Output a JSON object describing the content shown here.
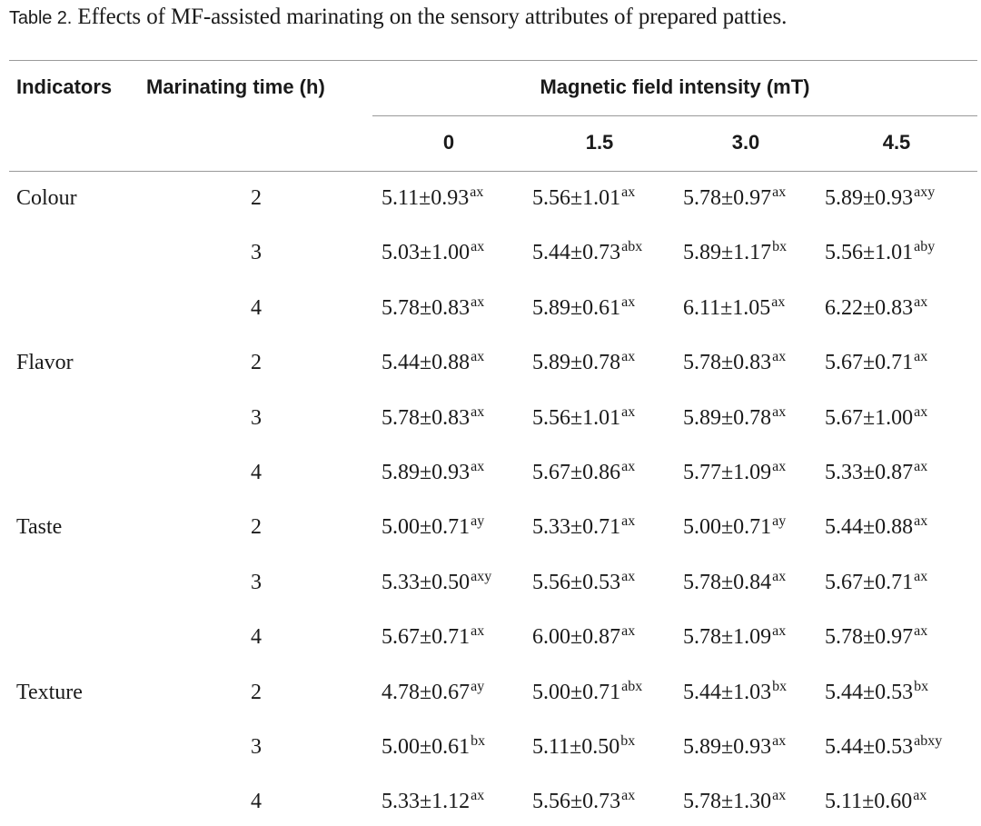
{
  "caption": {
    "label": "Table 2.",
    "text": "Effects of MF-assisted marinating on the sensory attributes of prepared patties."
  },
  "table": {
    "headers": {
      "indicators": "Indicators",
      "marinating_time": "Marinating time (h)",
      "group": "Magnetic field intensity (mT)",
      "intensities": [
        "0",
        "1.5",
        "3.0",
        "4.5"
      ]
    },
    "rows": [
      {
        "indicator": "Colour",
        "time": "2",
        "cells": [
          {
            "v": "5.11±0.93",
            "s": "ax"
          },
          {
            "v": "5.56±1.01",
            "s": "ax"
          },
          {
            "v": "5.78±0.97",
            "s": "ax"
          },
          {
            "v": "5.89±0.93",
            "s": "axy"
          }
        ]
      },
      {
        "indicator": "",
        "time": "3",
        "cells": [
          {
            "v": "5.03±1.00",
            "s": "ax"
          },
          {
            "v": "5.44±0.73",
            "s": "abx"
          },
          {
            "v": "5.89±1.17",
            "s": "bx"
          },
          {
            "v": "5.56±1.01",
            "s": "aby"
          }
        ]
      },
      {
        "indicator": "",
        "time": "4",
        "cells": [
          {
            "v": "5.78±0.83",
            "s": "ax"
          },
          {
            "v": "5.89±0.61",
            "s": "ax"
          },
          {
            "v": "6.11±1.05",
            "s": "ax"
          },
          {
            "v": "6.22±0.83",
            "s": "ax"
          }
        ]
      },
      {
        "indicator": "Flavor",
        "time": "2",
        "cells": [
          {
            "v": "5.44±0.88",
            "s": "ax"
          },
          {
            "v": "5.89±0.78",
            "s": "ax"
          },
          {
            "v": "5.78±0.83",
            "s": "ax"
          },
          {
            "v": "5.67±0.71",
            "s": "ax"
          }
        ]
      },
      {
        "indicator": "",
        "time": "3",
        "cells": [
          {
            "v": "5.78±0.83",
            "s": "ax"
          },
          {
            "v": "5.56±1.01",
            "s": "ax"
          },
          {
            "v": "5.89±0.78",
            "s": "ax"
          },
          {
            "v": "5.67±1.00",
            "s": "ax"
          }
        ]
      },
      {
        "indicator": "",
        "time": "4",
        "cells": [
          {
            "v": "5.89±0.93",
            "s": "ax"
          },
          {
            "v": "5.67±0.86",
            "s": "ax"
          },
          {
            "v": "5.77±1.09",
            "s": "ax"
          },
          {
            "v": "5.33±0.87",
            "s": "ax"
          }
        ]
      },
      {
        "indicator": "Taste",
        "time": "2",
        "cells": [
          {
            "v": "5.00±0.71",
            "s": "ay"
          },
          {
            "v": "5.33±0.71",
            "s": "ax"
          },
          {
            "v": "5.00±0.71",
            "s": "ay"
          },
          {
            "v": "5.44±0.88",
            "s": "ax"
          }
        ]
      },
      {
        "indicator": "",
        "time": "3",
        "cells": [
          {
            "v": "5.33±0.50",
            "s": "axy"
          },
          {
            "v": "5.56±0.53",
            "s": "ax"
          },
          {
            "v": "5.78±0.84",
            "s": "ax"
          },
          {
            "v": "5.67±0.71",
            "s": "ax"
          }
        ]
      },
      {
        "indicator": "",
        "time": "4",
        "cells": [
          {
            "v": "5.67±0.71",
            "s": "ax"
          },
          {
            "v": "6.00±0.87",
            "s": "ax"
          },
          {
            "v": "5.78±1.09",
            "s": "ax"
          },
          {
            "v": "5.78±0.97",
            "s": "ax"
          }
        ]
      },
      {
        "indicator": "Texture",
        "time": "2",
        "cells": [
          {
            "v": "4.78±0.67",
            "s": "ay"
          },
          {
            "v": "5.00±0.71",
            "s": "abx"
          },
          {
            "v": "5.44±1.03",
            "s": "bx"
          },
          {
            "v": "5.44±0.53",
            "s": "bx"
          }
        ]
      },
      {
        "indicator": "",
        "time": "3",
        "cells": [
          {
            "v": "5.00±0.61",
            "s": "bx"
          },
          {
            "v": "5.11±0.50",
            "s": "bx"
          },
          {
            "v": "5.89±0.93",
            "s": "ax"
          },
          {
            "v": "5.44±0.53",
            "s": "abxy"
          }
        ]
      },
      {
        "indicator": "",
        "time": "4",
        "cells": [
          {
            "v": "5.33±1.12",
            "s": "ax"
          },
          {
            "v": "5.56±0.73",
            "s": "ax"
          },
          {
            "v": "5.78±1.30",
            "s": "ax"
          },
          {
            "v": "5.11±0.60",
            "s": "ax"
          }
        ]
      }
    ]
  }
}
